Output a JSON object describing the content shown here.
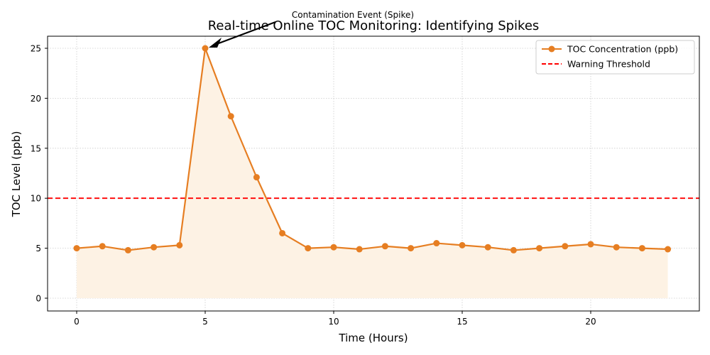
{
  "chart_data": {
    "type": "line",
    "title": "Real-time Online TOC Monitoring: Identifying Spikes",
    "xlabel": "Time (Hours)",
    "ylabel": "TOC Level (ppb)",
    "x": [
      0,
      1,
      2,
      3,
      4,
      5,
      6,
      7,
      8,
      9,
      10,
      11,
      12,
      13,
      14,
      15,
      16,
      17,
      18,
      19,
      20,
      21,
      22,
      23
    ],
    "series": [
      {
        "name": "TOC Concentration (ppb)",
        "color": "#e67e22",
        "marker": "circle",
        "fill_to_zero": true,
        "values": [
          5.0,
          5.2,
          4.8,
          5.1,
          5.3,
          25.0,
          18.2,
          12.1,
          6.5,
          5.0,
          5.1,
          4.9,
          5.2,
          5.0,
          5.5,
          5.3,
          5.1,
          4.8,
          5.0,
          5.2,
          5.4,
          5.1,
          5.0,
          4.9
        ]
      }
    ],
    "reference_lines": [
      {
        "name": "Warning Threshold",
        "y": 10,
        "color": "#ff0000",
        "style": "dashed"
      }
    ],
    "annotations": [
      {
        "text": "Contamination Event (Spike)",
        "xy": [
          5,
          25.0
        ],
        "arrow": true
      }
    ],
    "xticks": [
      0,
      5,
      10,
      15,
      20
    ],
    "yticks": [
      0,
      5,
      10,
      15,
      20,
      25
    ],
    "xlim": [
      -1.15,
      24.15
    ],
    "ylim": [
      -1.25,
      26.25
    ],
    "grid": true,
    "legend_position": "upper right"
  }
}
